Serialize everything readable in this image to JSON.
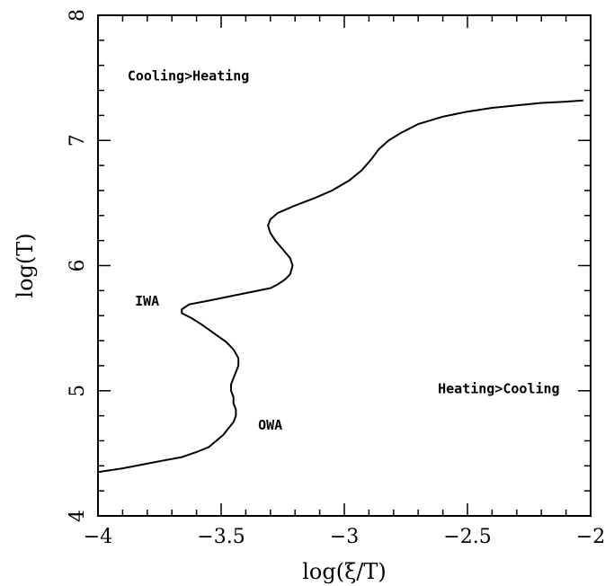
{
  "chart_data": {
    "type": "line",
    "xlabel": "log(ξ/T)",
    "ylabel": "log(T)",
    "xlim": [
      -4,
      -2
    ],
    "ylim": [
      4,
      8
    ],
    "grid": false,
    "xticks": [
      -4,
      -3.5,
      -3,
      -2.5,
      -2
    ],
    "xtick_labels": [
      "−4",
      "−3.5",
      "−3",
      "−2.5",
      "−2"
    ],
    "yticks": [
      4,
      5,
      6,
      7,
      8
    ],
    "ytick_labels": [
      "4",
      "5",
      "6",
      "7",
      "8"
    ],
    "annotations": [
      {
        "text": "Cooling>Heating",
        "x": -3.88,
        "y": 7.48
      },
      {
        "text": "Heating>Cooling",
        "x": -2.62,
        "y": 4.98
      },
      {
        "text": "IWA",
        "x": -3.85,
        "y": 5.68
      },
      {
        "text": "OWA",
        "x": -3.35,
        "y": 4.69
      }
    ],
    "series": [
      {
        "x": [
          -4.0,
          -3.9,
          -3.82,
          -3.74,
          -3.66,
          -3.6,
          -3.55,
          -3.52,
          -3.49,
          -3.47,
          -3.45,
          -3.44,
          -3.44,
          -3.45,
          -3.45,
          -3.46,
          -3.46,
          -3.45,
          -3.43,
          -3.43,
          -3.45,
          -3.48,
          -3.53,
          -3.58,
          -3.62,
          -3.66,
          -3.66,
          -3.63,
          -3.55,
          -3.45,
          -3.35,
          -3.3,
          -3.27,
          -3.24,
          -3.22,
          -3.21,
          -3.22,
          -3.25,
          -3.28,
          -3.3,
          -3.31,
          -3.3,
          -3.27,
          -3.2,
          -3.12,
          -3.05,
          -2.98,
          -2.93,
          -2.89,
          -2.86,
          -2.82,
          -2.77,
          -2.7,
          -2.6,
          -2.5,
          -2.4,
          -2.3,
          -2.2,
          -2.1,
          -2.03
        ],
        "y": [
          4.35,
          4.38,
          4.41,
          4.44,
          4.47,
          4.51,
          4.55,
          4.6,
          4.65,
          4.7,
          4.75,
          4.8,
          4.85,
          4.9,
          4.95,
          5.0,
          5.05,
          5.1,
          5.2,
          5.26,
          5.33,
          5.39,
          5.46,
          5.53,
          5.58,
          5.62,
          5.65,
          5.69,
          5.72,
          5.76,
          5.8,
          5.82,
          5.85,
          5.89,
          5.93,
          6.0,
          6.06,
          6.13,
          6.2,
          6.26,
          6.32,
          6.37,
          6.42,
          6.48,
          6.54,
          6.6,
          6.68,
          6.76,
          6.85,
          6.93,
          7.0,
          7.06,
          7.13,
          7.19,
          7.23,
          7.26,
          7.28,
          7.3,
          7.31,
          7.32
        ]
      }
    ]
  }
}
